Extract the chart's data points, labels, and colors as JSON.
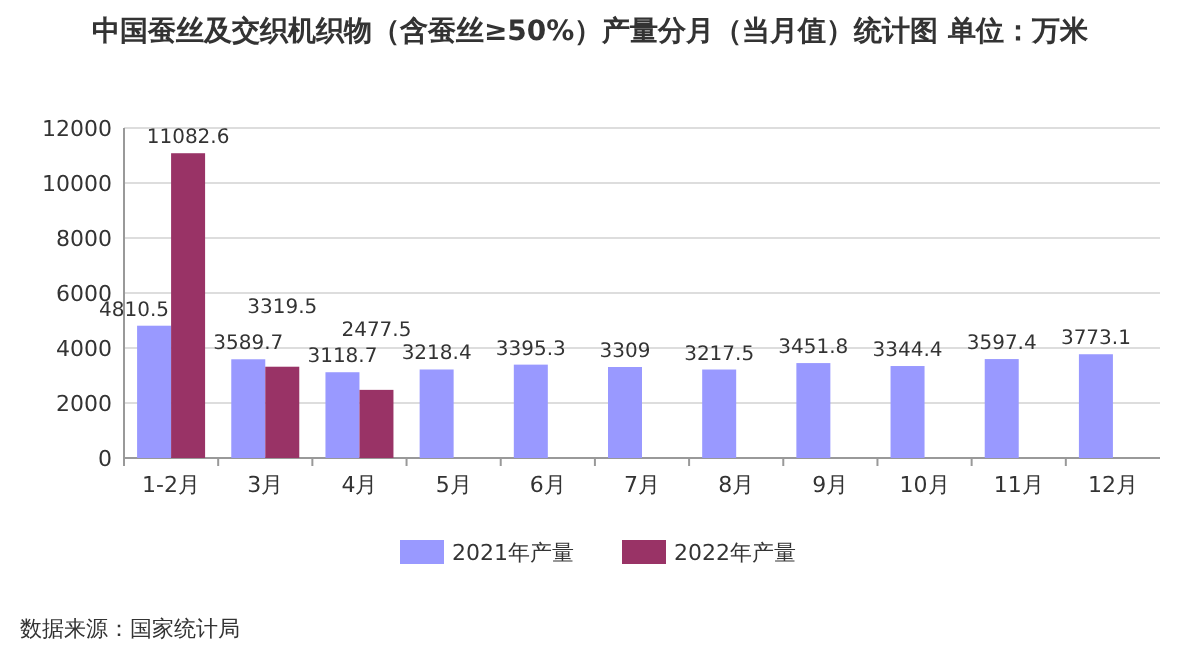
{
  "chart_data": {
    "type": "bar",
    "title": "中国蚕丝及交织机织物（含蚕丝≥50%）产量分月（当月值）统计图 单位：万米",
    "categories": [
      "1-2月",
      "3月",
      "4月",
      "5月",
      "6月",
      "7月",
      "8月",
      "9月",
      "10月",
      "11月",
      "12月"
    ],
    "series": [
      {
        "name": "2021年产量",
        "color": "#9999ff",
        "values": [
          4810.5,
          3589.7,
          3118.7,
          3218.4,
          3395.3,
          3309,
          3217.5,
          3451.8,
          3344.4,
          3597.4,
          3773.1
        ]
      },
      {
        "name": "2022年产量",
        "color": "#993366",
        "values": [
          11082.6,
          3319.5,
          2477.5,
          null,
          null,
          null,
          null,
          null,
          null,
          null,
          null
        ]
      }
    ],
    "ylim": [
      0,
      12000
    ],
    "yticks": [
      0,
      2000,
      4000,
      6000,
      8000,
      10000,
      12000
    ],
    "grid": "y",
    "legend": "bottom",
    "data_labels": true,
    "annotations": [
      "数据来源：国家统计局"
    ]
  }
}
